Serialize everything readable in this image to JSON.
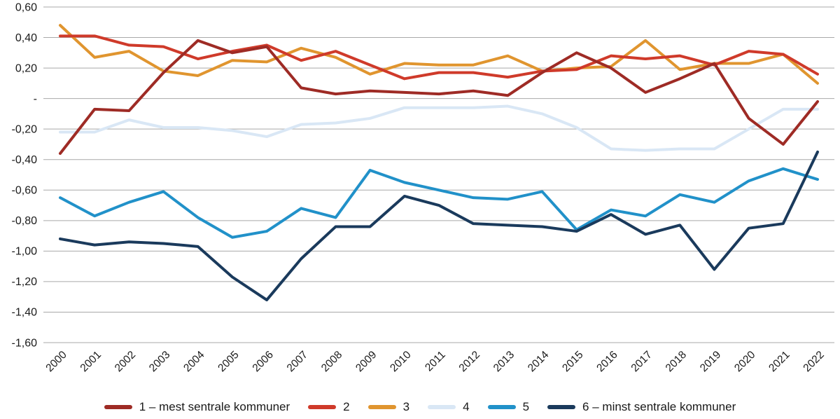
{
  "chart_data": {
    "type": "line",
    "title": "",
    "xlabel": "",
    "ylabel": "",
    "grid": true,
    "legend_position": "bottom",
    "ylim": [
      -1.6,
      0.6
    ],
    "yticks": [
      {
        "value": 0.6,
        "label": "0,60"
      },
      {
        "value": 0.4,
        "label": "0,40"
      },
      {
        "value": 0.2,
        "label": "0,20"
      },
      {
        "value": 0.0,
        "label": "-"
      },
      {
        "value": -0.2,
        "label": "-0,20"
      },
      {
        "value": -0.4,
        "label": "-0,40"
      },
      {
        "value": -0.6,
        "label": "-0,60"
      },
      {
        "value": -0.8,
        "label": "-0,80"
      },
      {
        "value": -1.0,
        "label": "-1,00"
      },
      {
        "value": -1.2,
        "label": "-1,20"
      },
      {
        "value": -1.4,
        "label": "-1,40"
      },
      {
        "value": -1.6,
        "label": "-1,60"
      }
    ],
    "categories": [
      "2000",
      "2001",
      "2002",
      "2003",
      "2004",
      "2005",
      "2006",
      "2007",
      "2008",
      "2009",
      "2010",
      "2011",
      "2012",
      "2013",
      "2014",
      "2015",
      "2016",
      "2017",
      "2018",
      "2019",
      "2020",
      "2021",
      "2022"
    ],
    "series": [
      {
        "name": "1 – mest sentrale kommuner",
        "color": "#9e2b25",
        "values": [
          -0.36,
          -0.07,
          -0.08,
          0.17,
          0.38,
          0.3,
          0.34,
          0.07,
          0.03,
          0.05,
          0.04,
          0.03,
          0.05,
          0.02,
          0.17,
          0.3,
          0.2,
          0.04,
          0.13,
          0.23,
          -0.13,
          -0.3,
          -0.02
        ]
      },
      {
        "name": "2",
        "color": "#cf3a2a",
        "values": [
          0.41,
          0.41,
          0.35,
          0.34,
          0.26,
          0.31,
          0.35,
          0.25,
          0.31,
          0.22,
          0.13,
          0.17,
          0.17,
          0.14,
          0.18,
          0.19,
          0.28,
          0.26,
          0.28,
          0.22,
          0.31,
          0.29,
          0.16
        ]
      },
      {
        "name": "3",
        "color": "#e0952f",
        "values": [
          0.48,
          0.27,
          0.31,
          0.18,
          0.15,
          0.25,
          0.24,
          0.33,
          0.27,
          0.16,
          0.23,
          0.22,
          0.22,
          0.28,
          0.18,
          0.2,
          0.21,
          0.38,
          0.19,
          0.23,
          0.23,
          0.29,
          0.1
        ]
      },
      {
        "name": "4",
        "color": "#d9e7f5",
        "values": [
          -0.22,
          -0.22,
          -0.14,
          -0.19,
          -0.19,
          -0.21,
          -0.25,
          -0.17,
          -0.16,
          -0.13,
          -0.06,
          -0.06,
          -0.06,
          -0.05,
          -0.1,
          -0.19,
          -0.33,
          -0.34,
          -0.33,
          -0.33,
          -0.2,
          -0.07,
          -0.07
        ]
      },
      {
        "name": "5",
        "color": "#2191c9",
        "values": [
          -0.65,
          -0.77,
          -0.68,
          -0.61,
          -0.78,
          -0.91,
          -0.87,
          -0.72,
          -0.78,
          -0.47,
          -0.55,
          -0.6,
          -0.65,
          -0.66,
          -0.61,
          -0.86,
          -0.73,
          -0.77,
          -0.63,
          -0.68,
          -0.54,
          -0.46,
          -0.53
        ]
      },
      {
        "name": "6 – minst sentrale kommuner",
        "color": "#1a3a5c",
        "values": [
          -0.92,
          -0.96,
          -0.94,
          -0.95,
          -0.97,
          -1.17,
          -1.32,
          -1.05,
          -0.84,
          -0.84,
          -0.64,
          -0.7,
          -0.82,
          -0.83,
          -0.84,
          -0.87,
          -0.76,
          -0.89,
          -0.83,
          -1.12,
          -0.85,
          -0.82,
          -0.35
        ]
      }
    ]
  },
  "colors": {
    "gridline": "#a9a9a9",
    "text": "#1a1a1a",
    "background": "#ffffff"
  }
}
